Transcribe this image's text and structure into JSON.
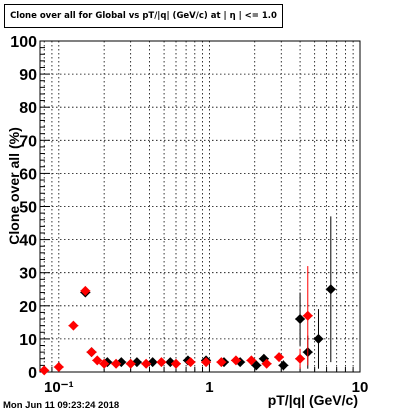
{
  "title": "Clone  over all for Global vs pT/|q| (GeV/c) at |  η | <= 1.0",
  "timestamp": "Mon Jun 11 09:23:24 2018",
  "chart_data": {
    "type": "scatter",
    "title": "Clone  over all for Global vs pT/|q| (GeV/c) at |  η | <= 1.0",
    "xlabel": "pT/|q| (GeV/c)",
    "ylabel": "Clone  over all (%)",
    "x_scale": "log",
    "xlim": [
      0.075,
      10
    ],
    "ylim": [
      0,
      100
    ],
    "grid": true,
    "x_tick_labels": [
      "10⁻¹",
      "1",
      "10"
    ],
    "y_tick_labels": [
      "0",
      "10",
      "20",
      "30",
      "40",
      "50",
      "60",
      "70",
      "80",
      "90",
      "100"
    ],
    "colors": {
      "series_black": "#000000",
      "series_red": "#ff0000"
    },
    "series": [
      {
        "marker": "diamond",
        "color": "#000000",
        "points": [
          {
            "x": 0.15,
            "y": 24,
            "yerr": 1
          },
          {
            "x": 0.165,
            "y": 6,
            "yerr": 0.5
          },
          {
            "x": 0.21,
            "y": 3,
            "yerr": 0.3
          },
          {
            "x": 0.26,
            "y": 3,
            "yerr": 0.3
          },
          {
            "x": 0.33,
            "y": 3,
            "yerr": 0.3
          },
          {
            "x": 0.42,
            "y": 3,
            "yerr": 0.3
          },
          {
            "x": 0.55,
            "y": 3,
            "yerr": 0.3
          },
          {
            "x": 0.72,
            "y": 3.5,
            "yerr": 0.3
          },
          {
            "x": 0.95,
            "y": 3.5,
            "yerr": 0.3
          },
          {
            "x": 1.25,
            "y": 3,
            "yerr": 0.4
          },
          {
            "x": 1.6,
            "y": 3,
            "yerr": 0.5
          },
          {
            "x": 2.05,
            "y": 2,
            "yerr": 0.8
          },
          {
            "x": 2.3,
            "y": 4,
            "yerr": 1
          },
          {
            "x": 3.1,
            "y": 2,
            "yerr": 1.5
          },
          {
            "x": 4.0,
            "y": 16,
            "yerr": 8
          },
          {
            "x": 4.5,
            "y": 6,
            "yerr": 5
          },
          {
            "x": 5.3,
            "y": 10,
            "yerr": 9
          },
          {
            "x": 6.4,
            "y": 25,
            "yerr": 22
          }
        ]
      },
      {
        "marker": "diamond",
        "color": "#ff0000",
        "points": [
          {
            "x": 0.08,
            "y": 0.5,
            "yerr": 0.3
          },
          {
            "x": 0.1,
            "y": 1.5,
            "yerr": 0.3
          },
          {
            "x": 0.125,
            "y": 14,
            "yerr": 0.8
          },
          {
            "x": 0.15,
            "y": 24.5,
            "yerr": 1
          },
          {
            "x": 0.165,
            "y": 6,
            "yerr": 0.5
          },
          {
            "x": 0.18,
            "y": 3.5,
            "yerr": 0.4
          },
          {
            "x": 0.2,
            "y": 2.5,
            "yerr": 0.3
          },
          {
            "x": 0.24,
            "y": 2.5,
            "yerr": 0.3
          },
          {
            "x": 0.3,
            "y": 2.5,
            "yerr": 0.3
          },
          {
            "x": 0.38,
            "y": 2.5,
            "yerr": 0.3
          },
          {
            "x": 0.48,
            "y": 3,
            "yerr": 0.3
          },
          {
            "x": 0.6,
            "y": 2.5,
            "yerr": 0.3
          },
          {
            "x": 0.75,
            "y": 3,
            "yerr": 0.3
          },
          {
            "x": 0.95,
            "y": 3,
            "yerr": 0.4
          },
          {
            "x": 1.2,
            "y": 3,
            "yerr": 0.4
          },
          {
            "x": 1.5,
            "y": 3.5,
            "yerr": 0.5
          },
          {
            "x": 1.9,
            "y": 3.5,
            "yerr": 0.6
          },
          {
            "x": 2.4,
            "y": 2.5,
            "yerr": 0.8
          },
          {
            "x": 2.9,
            "y": 4.5,
            "yerr": 1.2
          },
          {
            "x": 4.0,
            "y": 4,
            "yerr": 3
          },
          {
            "x": 4.5,
            "y": 17,
            "yerr": 15
          }
        ]
      }
    ]
  }
}
